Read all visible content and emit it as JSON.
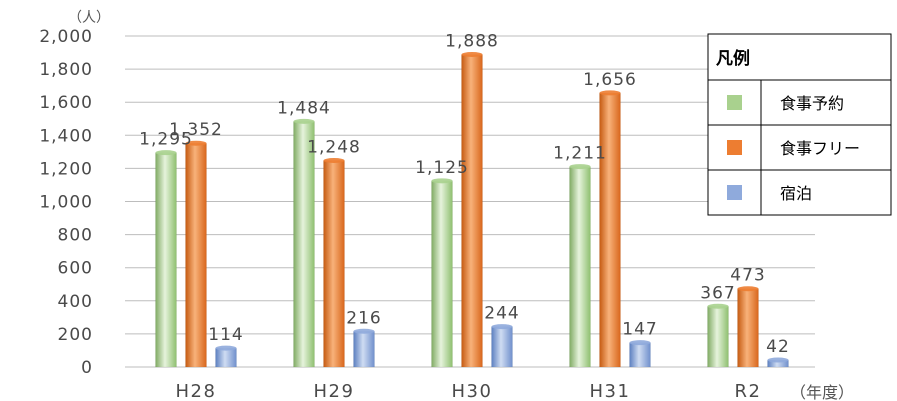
{
  "chart_data": {
    "type": "bar",
    "y_unit": "（人）",
    "x_unit": "（年度）",
    "categories": [
      "H28",
      "H29",
      "H30",
      "H31",
      "R2"
    ],
    "series": [
      {
        "name": "食事予約",
        "values": [
          1295,
          1484,
          1125,
          1211,
          367
        ],
        "labels": [
          "1,295",
          "1,484",
          "1,125",
          "1,211",
          "367"
        ],
        "color": "#a9d18e"
      },
      {
        "name": "食事フリー",
        "values": [
          1352,
          1248,
          1888,
          1656,
          473
        ],
        "labels": [
          "1,352",
          "1,248",
          "1,888",
          "1,656",
          "473"
        ],
        "color": "#ed7d31"
      },
      {
        "name": "宿泊",
        "values": [
          114,
          216,
          244,
          147,
          42
        ],
        "labels": [
          "114",
          "216",
          "244",
          "147",
          "42"
        ],
        "color": "#8faadc"
      }
    ],
    "ylim": [
      0,
      2000
    ],
    "y_ticks": [
      0,
      200,
      400,
      600,
      800,
      1000,
      1200,
      1400,
      1600,
      1800,
      2000
    ],
    "y_tick_labels": [
      "0",
      "200",
      "400",
      "600",
      "800",
      "1,000",
      "1,200",
      "1,400",
      "1,600",
      "1,800",
      "2,000"
    ],
    "grid": true,
    "legend": {
      "title": "凡例",
      "placement": "top-right"
    }
  }
}
